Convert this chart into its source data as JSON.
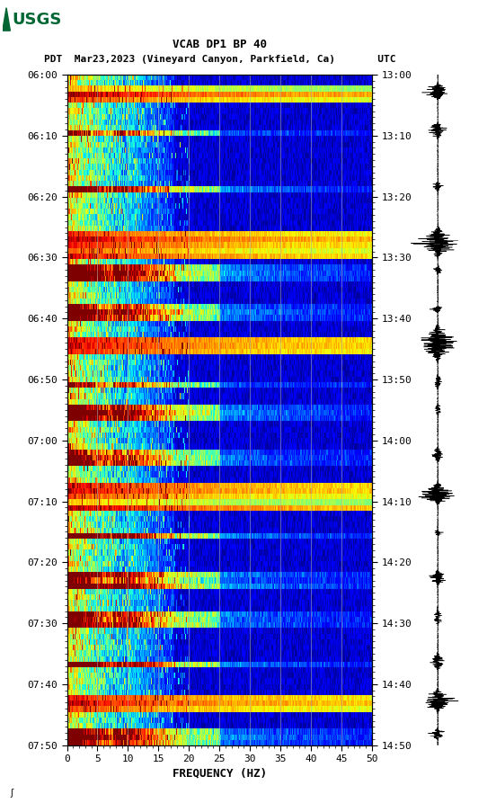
{
  "title_line1": "VCAB DP1 BP 40",
  "title_line2": "PDT  Mar23,2023 (Vineyard Canyon, Parkfield, Ca)       UTC",
  "xlabel": "FREQUENCY (HZ)",
  "freq_min": 0,
  "freq_max": 50,
  "time_left_labels": [
    "06:00",
    "06:10",
    "06:20",
    "06:30",
    "06:40",
    "06:50",
    "07:00",
    "07:10",
    "07:20",
    "07:30",
    "07:40",
    "07:50"
  ],
  "time_right_labels": [
    "13:00",
    "13:10",
    "13:20",
    "13:30",
    "13:40",
    "13:50",
    "14:00",
    "14:10",
    "14:20",
    "14:30",
    "14:40",
    "14:50"
  ],
  "freq_ticks": [
    0,
    5,
    10,
    15,
    20,
    25,
    30,
    35,
    40,
    45,
    50
  ],
  "vert_grid_freqs": [
    5,
    10,
    15,
    20,
    25,
    30,
    35,
    40,
    45
  ],
  "background_color": "#ffffff",
  "usgs_color": "#006633",
  "tick_label_fontsize": 8,
  "title_fontsize": 9,
  "axis_label_fontsize": 9,
  "seed": 12345,
  "event_rows_major": [
    3,
    30,
    48,
    75,
    112
  ],
  "event_rows_minor": [
    10,
    20,
    35,
    42,
    55,
    60,
    68,
    82,
    90,
    97,
    105,
    118
  ],
  "num_time_rows": 120,
  "num_freq_cols": 500
}
